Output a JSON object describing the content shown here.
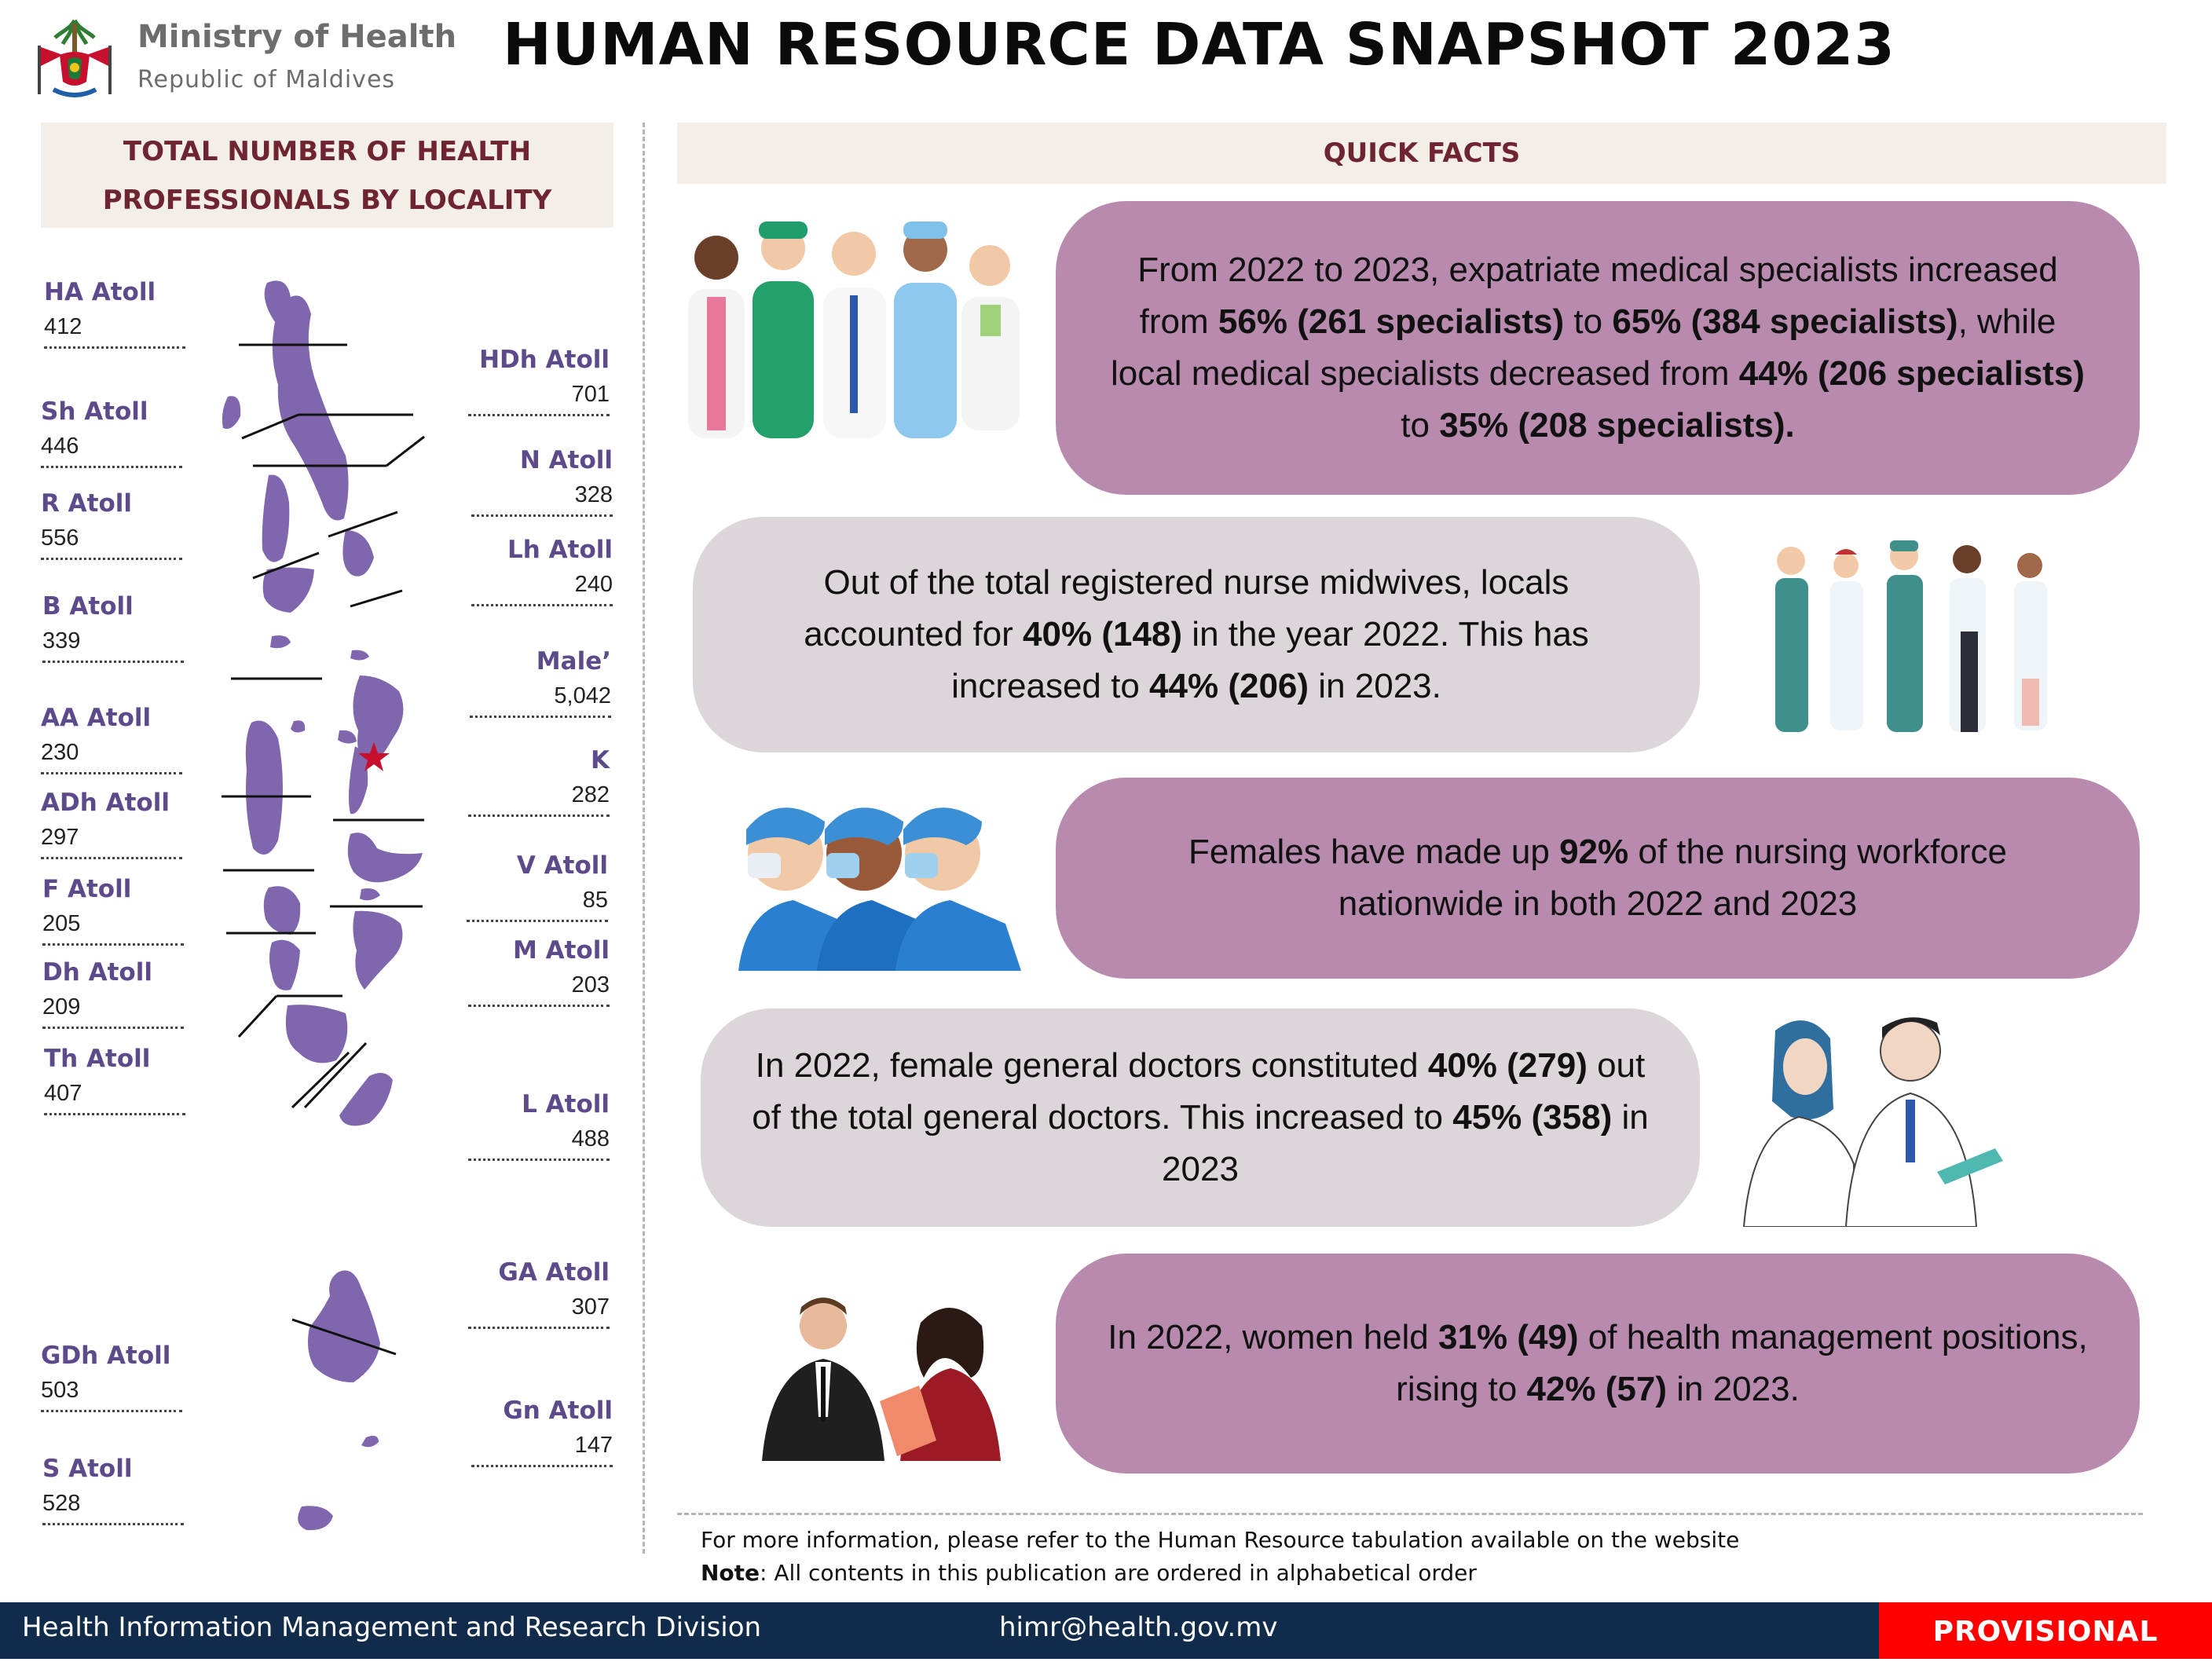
{
  "header": {
    "ministry": "Ministry of Health",
    "country": "Republic of Maldives",
    "title": "HUMAN RESOURCE DATA SNAPSHOT 2023"
  },
  "locality": {
    "heading_line1": "TOTAL NUMBER OF HEALTH",
    "heading_line2": "PROFESSIONALS BY LOCALITY",
    "atolls": [
      {
        "name": "HA Atoll",
        "value": "412"
      },
      {
        "name": "Sh Atoll",
        "value": "446"
      },
      {
        "name": "R Atoll",
        "value": "556"
      },
      {
        "name": "B Atoll",
        "value": "339"
      },
      {
        "name": "AA Atoll",
        "value": "230"
      },
      {
        "name": "ADh Atoll",
        "value": "297"
      },
      {
        "name": "F Atoll",
        "value": "205"
      },
      {
        "name": "Dh Atoll",
        "value": "209"
      },
      {
        "name": "Th Atoll",
        "value": "407"
      },
      {
        "name": "GDh Atoll",
        "value": "503"
      },
      {
        "name": "S Atoll",
        "value": "528"
      },
      {
        "name": "HDh Atoll",
        "value": "701"
      },
      {
        "name": "N Atoll",
        "value": "328"
      },
      {
        "name": "Lh Atoll",
        "value": "240"
      },
      {
        "name": "Male’",
        "value": "5,042"
      },
      {
        "name": "K",
        "value": "282"
      },
      {
        "name": "V Atoll",
        "value": "85"
      },
      {
        "name": "M Atoll",
        "value": "203"
      },
      {
        "name": "L Atoll",
        "value": "488"
      },
      {
        "name": "GA Atoll",
        "value": "307"
      },
      {
        "name": "Gn Atoll",
        "value": "147"
      }
    ]
  },
  "quick_facts": {
    "heading": "QUICK FACTS",
    "facts": [
      [
        "From 2022 to 2023, expatriate medical specialists increased from ",
        "56% (261 specialists)",
        " to ",
        "65% (384 specialists)",
        ", while local medical specialists decreased from ",
        "44% (206 specialists)",
        " to ",
        "35% (208 specialists).",
        ""
      ],
      [
        "Out of the total registered nurse midwives, locals accounted for ",
        "40% (148)",
        " in the year 2022. This has increased to ",
        "44% (206)",
        " in 2023."
      ],
      [
        "Females have made up ",
        "92%",
        " of the nursing workforce nationwide in both 2022 and 2023"
      ],
      [
        "In 2022, female general doctors constituted ",
        "40% (279)",
        " out of the total general doctors. This increased to ",
        "45% (358)",
        " in 2023"
      ],
      [
        "In 2022, women held ",
        "31% (49)",
        " of health management positions, rising to ",
        "42% (57)",
        " in 2023."
      ]
    ]
  },
  "notes": {
    "more_info": "For more information, please refer to the Human Resource tabulation available on the website",
    "note_label": "Note",
    "note_text": ": All contents in this publication are ordered in alphabetical order"
  },
  "footer": {
    "division": "Health Information Management and Research Division",
    "email": "himr@health.gov.mv",
    "status": "PROVISIONAL"
  },
  "colors": {
    "atoll_purple": "#7f66ad",
    "fact_purple": "#b88aae",
    "fact_grey": "#dcd6da",
    "heading_maroon": "#6e2431",
    "footer_navy": "#102c4a",
    "provisional_red": "#ff0000"
  }
}
